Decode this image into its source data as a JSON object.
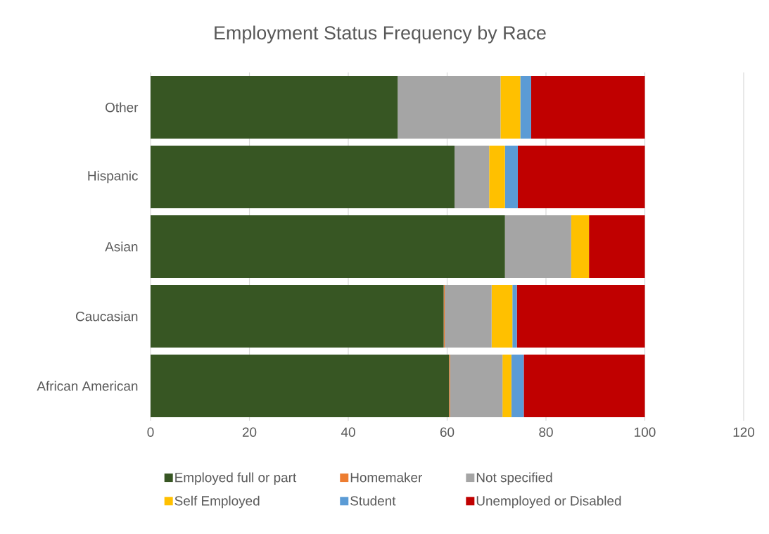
{
  "chart_data": {
    "type": "bar",
    "title": "Employment Status Frequency by Race",
    "orientation": "horizontal",
    "stacked": true,
    "categories": [
      "Other",
      "Hispanic",
      "Asian",
      "Caucasian",
      "African American"
    ],
    "series": [
      {
        "name": "Employed full or part",
        "color": "#375623",
        "values": [
          50.0,
          61.5,
          71.7,
          59.3,
          60.4
        ]
      },
      {
        "name": "Homemaker",
        "color": "#ed7d31",
        "values": [
          0,
          0,
          0,
          0.2,
          0.2
        ]
      },
      {
        "name": "Not specified",
        "color": "#a5a5a5",
        "values": [
          20.8,
          7.0,
          13.4,
          9.5,
          10.6
        ]
      },
      {
        "name": "Self Employed",
        "color": "#ffc000",
        "values": [
          4.0,
          3.2,
          3.6,
          4.2,
          1.8
        ]
      },
      {
        "name": "Student",
        "color": "#5b9bd5",
        "values": [
          2.2,
          2.6,
          0,
          0.9,
          2.5
        ]
      },
      {
        "name": "Unemployed or Disabled",
        "color": "#c00000",
        "values": [
          23.0,
          25.7,
          11.3,
          25.9,
          24.5
        ]
      }
    ],
    "xlim": [
      0,
      120
    ],
    "xticks": [
      0,
      20,
      40,
      60,
      80,
      100,
      120
    ],
    "grid": "x",
    "legend": "bottom"
  }
}
